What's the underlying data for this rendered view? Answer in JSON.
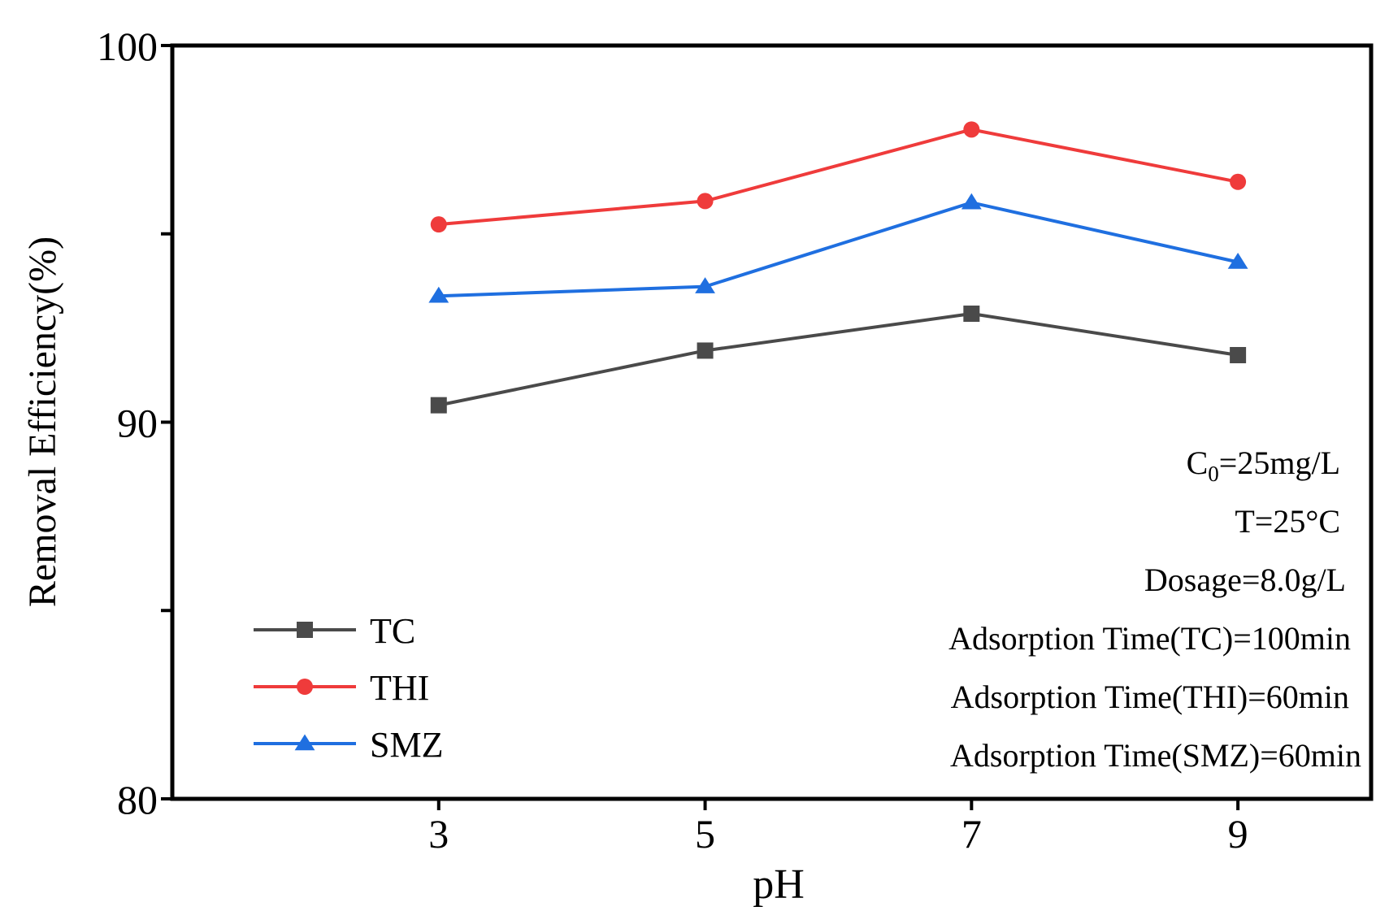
{
  "chart_data": {
    "type": "line",
    "title": "",
    "xlabel": "pH",
    "ylabel": "Removal Efficiency(%)",
    "x": [
      3,
      5,
      7,
      9
    ],
    "xticks": [
      "3",
      "5",
      "7",
      "9"
    ],
    "xlim": [
      1,
      10
    ],
    "ylim": [
      80,
      100
    ],
    "yticks": [
      {
        "value": 80,
        "label": "80"
      },
      {
        "value": 85,
        "label": ""
      },
      {
        "value": 90,
        "label": "90"
      },
      {
        "value": 95,
        "label": ""
      },
      {
        "value": 100,
        "label": "100"
      }
    ],
    "grid": false,
    "legend_position": "bottom-left",
    "series": [
      {
        "name": "TC",
        "marker": "square",
        "color": "#4a4a4a",
        "values": [
          90.45,
          91.9,
          92.88,
          91.78
        ]
      },
      {
        "name": "THI",
        "marker": "circle",
        "color": "#ef3b3b",
        "values": [
          95.25,
          95.87,
          97.77,
          96.38
        ]
      },
      {
        "name": "SMZ",
        "marker": "triangle",
        "color": "#1f6fe0",
        "values": [
          93.35,
          93.6,
          95.83,
          94.25
        ]
      }
    ],
    "annotations": {
      "concentration": {
        "prefix": "C",
        "sub": "0",
        "suffix": "=25mg/L"
      },
      "lines": [
        "T=25°C",
        "Dosage=8.0g/L",
        "Adsorption Time(TC)=100min",
        "Adsorption Time(THI)=60min",
        "Adsorption Time(SMZ)=60min"
      ]
    }
  }
}
